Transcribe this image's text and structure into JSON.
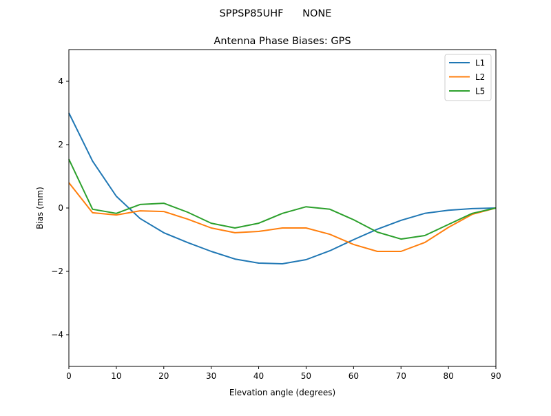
{
  "suptitle": "SPPSP85UHF      NONE",
  "chart_data": {
    "type": "line",
    "title": "Antenna Phase Biases: GPS",
    "xlabel": "Elevation angle (degrees)",
    "ylabel": "Bias (mm)",
    "xlim": [
      0,
      90
    ],
    "ylim": [
      -5,
      5
    ],
    "xticks": [
      0,
      10,
      20,
      30,
      40,
      50,
      60,
      70,
      80,
      90
    ],
    "yticks": [
      -4,
      -2,
      0,
      2,
      4
    ],
    "ytick_labels": [
      "−4",
      "−2",
      "0",
      "2",
      "4"
    ],
    "grid": false,
    "legend_position": "top-right",
    "x": [
      0,
      5,
      10,
      15,
      20,
      25,
      30,
      35,
      40,
      45,
      50,
      55,
      60,
      65,
      70,
      75,
      80,
      85,
      90
    ],
    "series": [
      {
        "name": "L1",
        "color": "#1f77b4",
        "values": [
          3.0,
          1.48,
          0.37,
          -0.33,
          -0.78,
          -1.09,
          -1.37,
          -1.61,
          -1.74,
          -1.76,
          -1.63,
          -1.35,
          -1.0,
          -0.67,
          -0.39,
          -0.17,
          -0.07,
          -0.02,
          0
        ]
      },
      {
        "name": "L2",
        "color": "#ff7f0e",
        "values": [
          0.8,
          -0.15,
          -0.22,
          -0.09,
          -0.11,
          -0.35,
          -0.63,
          -0.78,
          -0.74,
          -0.63,
          -0.63,
          -0.83,
          -1.15,
          -1.37,
          -1.37,
          -1.09,
          -0.61,
          -0.2,
          0
        ]
      },
      {
        "name": "L5",
        "color": "#2ca02c",
        "values": [
          1.54,
          -0.04,
          -0.17,
          0.11,
          0.15,
          -0.13,
          -0.48,
          -0.63,
          -0.48,
          -0.17,
          0.04,
          -0.04,
          -0.37,
          -0.76,
          -0.98,
          -0.87,
          -0.52,
          -0.17,
          0
        ]
      }
    ]
  }
}
